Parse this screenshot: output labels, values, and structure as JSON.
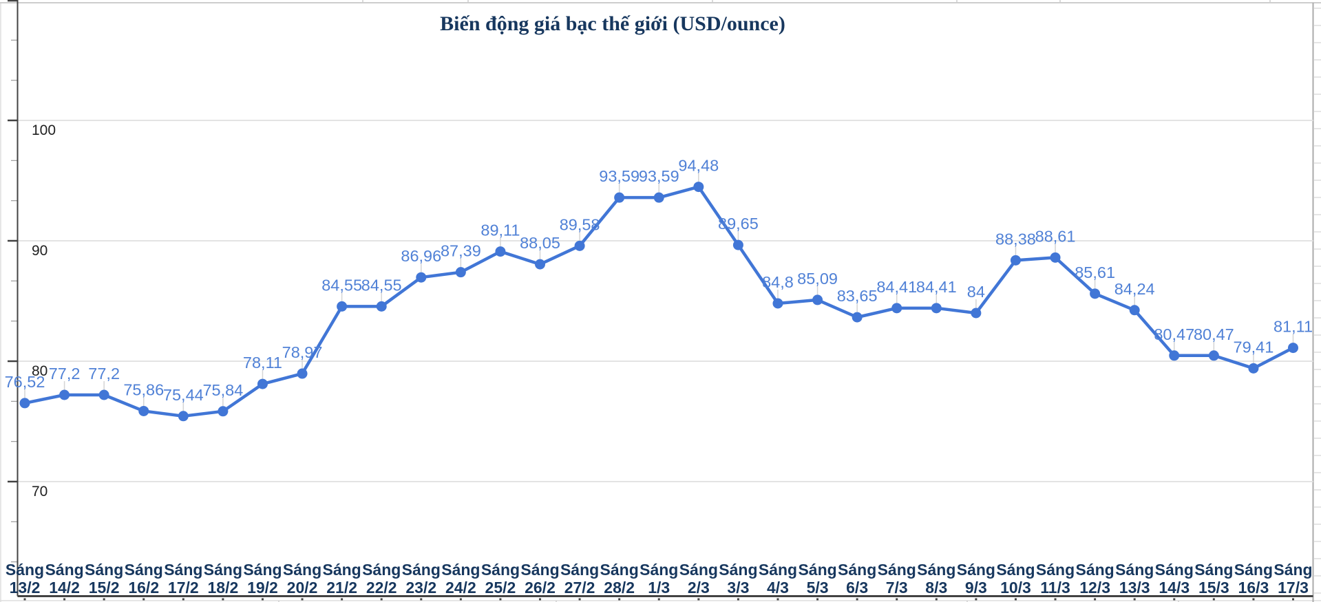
{
  "chart_data": {
    "type": "line",
    "title": "Biến động giá bạc thế giới (USD/ounce)",
    "xlabel": "",
    "ylabel": "",
    "unit": "USD/ounce",
    "grid": true,
    "legend_position": "none",
    "ylim": [
      60.5,
      110
    ],
    "y_ticks": [
      100,
      90,
      80,
      70
    ],
    "minor_ticks_per_major": 3,
    "categories": [
      "Sáng 13/2",
      "Sáng 14/2",
      "Sáng 15/2",
      "Sáng 16/2",
      "Sáng 17/2",
      "Sáng 18/2",
      "Sáng 19/2",
      "Sáng 20/2",
      "Sáng 21/2",
      "Sáng 22/2",
      "Sáng 23/2",
      "Sáng 24/2",
      "Sáng 25/2",
      "Sáng 26/2",
      "Sáng 27/2",
      "Sáng 28/2",
      "Sáng 1/3",
      "Sáng 2/3",
      "Sáng 3/3",
      "Sáng 4/3",
      "Sáng 5/3",
      "Sáng 6/3",
      "Sáng 7/3",
      "Sáng 8/3",
      "Sáng 9/3",
      "Sáng 10/3",
      "Sáng 11/3",
      "Sáng 12/3",
      "Sáng 13/3",
      "Sáng 14/3",
      "Sáng 15/3",
      "Sáng 16/3",
      "Sáng 17/3"
    ],
    "values": [
      76.52,
      77.2,
      77.2,
      75.86,
      75.44,
      75.84,
      78.11,
      78.97,
      84.55,
      84.55,
      86.96,
      87.39,
      89.11,
      88.05,
      89.58,
      93.59,
      93.59,
      94.48,
      89.65,
      84.8,
      85.09,
      83.65,
      84.41,
      84.41,
      84,
      88.38,
      88.61,
      85.61,
      84.24,
      80.47,
      80.47,
      79.41,
      81.11
    ],
    "point_labels": [
      "76,52",
      "77,2",
      "77,2",
      "75,86",
      "75,44",
      "75,84",
      "78,11",
      "78,97",
      "84,55",
      "84,55",
      "86,96",
      "87,39",
      "89,11",
      "88,05",
      "89,58",
      "93,59",
      "93,59",
      "94,48",
      "89,65",
      "84,8",
      "85,09",
      "83,65",
      "84,41",
      "84,41",
      "84",
      "88,38",
      "88,61",
      "85,61",
      "84,24",
      "80,47",
      "80,47",
      "79,41",
      "81,11"
    ]
  },
  "colors": {
    "series": "#4176d6",
    "point_label": "#5081d6",
    "title": "#17375e",
    "category_label": "#17375e",
    "tick_label": "#1f1f1f",
    "grid": "#e3e3e3",
    "axis": "#424242",
    "leader": "#d4d4d4",
    "sheet_line": "#cdcdcd",
    "chart_border": "#ababab"
  }
}
